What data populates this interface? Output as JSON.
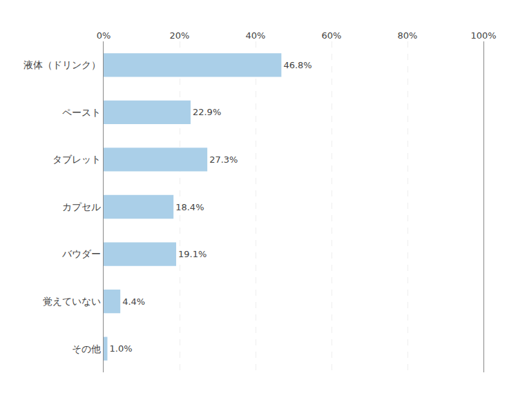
{
  "chart_data": {
    "type": "bar",
    "orientation": "horizontal",
    "categories": [
      "液体（ドリンク）",
      "ペースト",
      "タブレット",
      "カプセル",
      "バウダー",
      "覚えていない",
      "その他"
    ],
    "values": [
      46.8,
      22.9,
      27.3,
      18.4,
      19.1,
      4.4,
      1.0
    ],
    "value_labels": [
      "46.8%",
      "22.9%",
      "27.3%",
      "18.4%",
      "19.1%",
      "4.4%",
      "1.0%"
    ],
    "data_labels": true,
    "color": "#aacfe8",
    "xlim": [
      0,
      100
    ],
    "xticks": [
      {
        "value": 0,
        "label": "0%"
      },
      {
        "value": 20,
        "label": "20%"
      },
      {
        "value": 40,
        "label": "40%"
      },
      {
        "value": 60,
        "label": "60%"
      },
      {
        "value": 80,
        "label": "80%"
      },
      {
        "value": 100,
        "label": "100%"
      }
    ],
    "grid": true
  }
}
